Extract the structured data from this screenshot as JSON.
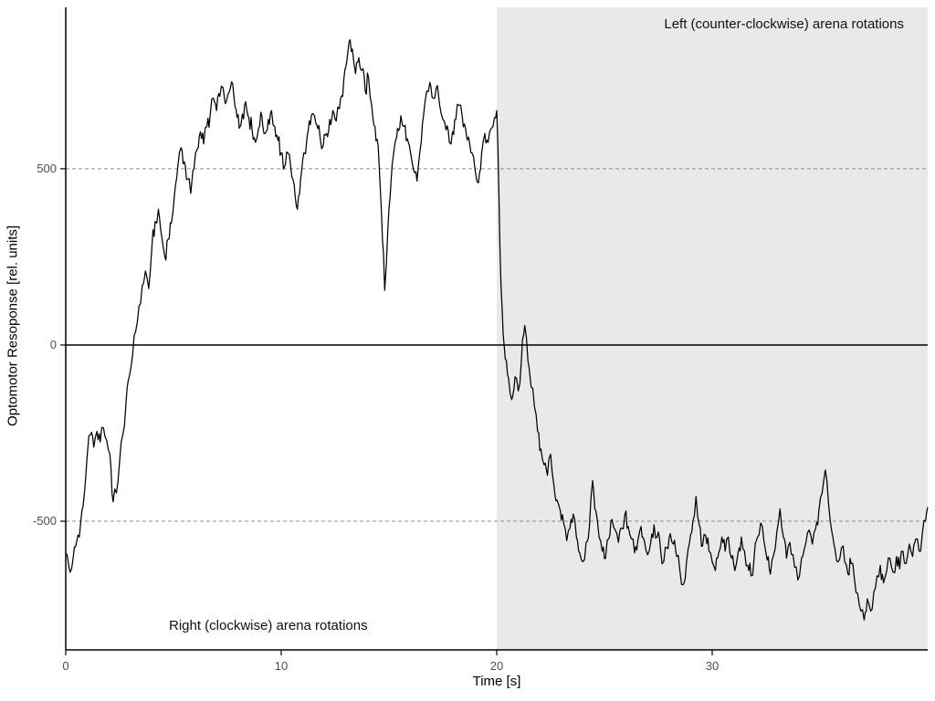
{
  "page": {
    "background": "#ffffff"
  },
  "chart_data": {
    "type": "line",
    "title": "",
    "xlabel": "Time [s]",
    "ylabel": "Optomotor Resoponse [rel. units]",
    "xlim": [
      0,
      40
    ],
    "ylim": [
      -865,
      958
    ],
    "x_ticks": [
      0,
      10,
      20,
      30
    ],
    "y_ticks": [
      -500,
      0,
      500
    ],
    "zero_line": 0,
    "dashed_gridlines": [
      500,
      -500
    ],
    "grid_dash_color": "#8c8c8c",
    "axis_color": "#000000",
    "tick_label_color": "#4d4d4d",
    "legend": "none",
    "shaded_region": {
      "x_start": 20,
      "x_end": 40,
      "color": "#e9e9e9"
    },
    "annotations": [
      {
        "id": "right-rotations",
        "text": "Right (clockwise) arena rotations",
        "region": "unshaded",
        "x": 5.5,
        "y": -770
      },
      {
        "id": "left-rotations",
        "text": "Left (counter-clockwise) arena rotations",
        "region": "shaded",
        "x": 30,
        "y": 900
      }
    ],
    "noise_amplitude": 26,
    "series": [
      {
        "name": "optomotor-response",
        "color": "#000000",
        "points": [
          [
            0,
            -590
          ],
          [
            0.2,
            -645
          ],
          [
            0.35,
            -600
          ],
          [
            0.5,
            -560
          ],
          [
            0.7,
            -500
          ],
          [
            0.85,
            -430
          ],
          [
            1,
            -310
          ],
          [
            1.15,
            -255
          ],
          [
            1.3,
            -290
          ],
          [
            1.45,
            -245
          ],
          [
            1.6,
            -275
          ],
          [
            1.75,
            -235
          ],
          [
            1.9,
            -270
          ],
          [
            2.05,
            -310
          ],
          [
            2.2,
            -445
          ],
          [
            2.35,
            -420
          ],
          [
            2.5,
            -330
          ],
          [
            2.65,
            -255
          ],
          [
            2.8,
            -160
          ],
          [
            2.95,
            -90
          ],
          [
            3.1,
            -30
          ],
          [
            3.25,
            40
          ],
          [
            3.4,
            110
          ],
          [
            3.55,
            170
          ],
          [
            3.7,
            210
          ],
          [
            3.85,
            160
          ],
          [
            4,
            280
          ],
          [
            4.15,
            350
          ],
          [
            4.3,
            385
          ],
          [
            4.45,
            310
          ],
          [
            4.6,
            250
          ],
          [
            4.75,
            300
          ],
          [
            4.9,
            345
          ],
          [
            5.05,
            430
          ],
          [
            5.2,
            505
          ],
          [
            5.35,
            560
          ],
          [
            5.5,
            520
          ],
          [
            5.65,
            470
          ],
          [
            5.8,
            430
          ],
          [
            5.95,
            500
          ],
          [
            6.1,
            555
          ],
          [
            6.25,
            605
          ],
          [
            6.4,
            570
          ],
          [
            6.55,
            620
          ],
          [
            6.7,
            650
          ],
          [
            6.85,
            700
          ],
          [
            7,
            665
          ],
          [
            7.15,
            705
          ],
          [
            7.3,
            730
          ],
          [
            7.45,
            690
          ],
          [
            7.6,
            720
          ],
          [
            7.75,
            740
          ],
          [
            7.9,
            670
          ],
          [
            8.05,
            615
          ],
          [
            8.2,
            655
          ],
          [
            8.35,
            690
          ],
          [
            8.5,
            645
          ],
          [
            8.65,
            610
          ],
          [
            8.8,
            575
          ],
          [
            8.95,
            615
          ],
          [
            9.1,
            650
          ],
          [
            9.25,
            600
          ],
          [
            9.4,
            640
          ],
          [
            9.55,
            665
          ],
          [
            9.7,
            620
          ],
          [
            9.85,
            580
          ],
          [
            10,
            545
          ],
          [
            10.15,
            505
          ],
          [
            10.3,
            545
          ],
          [
            10.45,
            500
          ],
          [
            10.6,
            455
          ],
          [
            10.75,
            385
          ],
          [
            10.9,
            470
          ],
          [
            11.05,
            545
          ],
          [
            11.2,
            590
          ],
          [
            11.35,
            625
          ],
          [
            11.5,
            655
          ],
          [
            11.65,
            625
          ],
          [
            11.8,
            590
          ],
          [
            11.95,
            565
          ],
          [
            12.1,
            600
          ],
          [
            12.25,
            640
          ],
          [
            12.4,
            665
          ],
          [
            12.55,
            635
          ],
          [
            12.7,
            670
          ],
          [
            12.85,
            705
          ],
          [
            13,
            790
          ],
          [
            13.15,
            860
          ],
          [
            13.3,
            840
          ],
          [
            13.45,
            770
          ],
          [
            13.6,
            815
          ],
          [
            13.75,
            780
          ],
          [
            13.9,
            720
          ],
          [
            14.05,
            760
          ],
          [
            14.2,
            680
          ],
          [
            14.35,
            620
          ],
          [
            14.5,
            565
          ],
          [
            14.65,
            380
          ],
          [
            14.8,
            155
          ],
          [
            14.95,
            330
          ],
          [
            15.1,
            470
          ],
          [
            15.25,
            560
          ],
          [
            15.4,
            615
          ],
          [
            15.55,
            650
          ],
          [
            15.7,
            620
          ],
          [
            15.85,
            585
          ],
          [
            16,
            545
          ],
          [
            16.15,
            495
          ],
          [
            16.3,
            465
          ],
          [
            16.45,
            555
          ],
          [
            16.6,
            650
          ],
          [
            16.75,
            720
          ],
          [
            16.9,
            745
          ],
          [
            17.05,
            700
          ],
          [
            17.2,
            730
          ],
          [
            17.35,
            680
          ],
          [
            17.5,
            640
          ],
          [
            17.65,
            610
          ],
          [
            17.8,
            575
          ],
          [
            17.95,
            605
          ],
          [
            18.1,
            640
          ],
          [
            18.25,
            680
          ],
          [
            18.4,
            650
          ],
          [
            18.55,
            615
          ],
          [
            18.7,
            590
          ],
          [
            18.85,
            545
          ],
          [
            19,
            495
          ],
          [
            19.15,
            460
          ],
          [
            19.3,
            545
          ],
          [
            19.45,
            600
          ],
          [
            19.6,
            575
          ],
          [
            19.75,
            615
          ],
          [
            19.9,
            645
          ],
          [
            20,
            665
          ],
          [
            20.1,
            430
          ],
          [
            20.2,
            170
          ],
          [
            20.3,
            30
          ],
          [
            20.4,
            -40
          ],
          [
            20.55,
            -95
          ],
          [
            20.7,
            -155
          ],
          [
            20.85,
            -90
          ],
          [
            21,
            -130
          ],
          [
            21.15,
            -40
          ],
          [
            21.3,
            55
          ],
          [
            21.45,
            -45
          ],
          [
            21.6,
            -120
          ],
          [
            21.75,
            -175
          ],
          [
            21.9,
            -245
          ],
          [
            22.05,
            -295
          ],
          [
            22.2,
            -340
          ],
          [
            22.35,
            -370
          ],
          [
            22.5,
            -310
          ],
          [
            22.65,
            -395
          ],
          [
            22.8,
            -440
          ],
          [
            22.95,
            -470
          ],
          [
            23.1,
            -505
          ],
          [
            23.25,
            -555
          ],
          [
            23.4,
            -520
          ],
          [
            23.55,
            -480
          ],
          [
            23.7,
            -545
          ],
          [
            23.85,
            -590
          ],
          [
            24,
            -615
          ],
          [
            24.15,
            -560
          ],
          [
            24.3,
            -515
          ],
          [
            24.45,
            -385
          ],
          [
            24.6,
            -470
          ],
          [
            24.75,
            -545
          ],
          [
            24.9,
            -585
          ],
          [
            25.05,
            -605
          ],
          [
            25.2,
            -550
          ],
          [
            25.35,
            -495
          ],
          [
            25.5,
            -525
          ],
          [
            25.65,
            -560
          ],
          [
            25.8,
            -520
          ],
          [
            25.95,
            -480
          ],
          [
            26.1,
            -515
          ],
          [
            26.25,
            -550
          ],
          [
            26.4,
            -590
          ],
          [
            26.55,
            -555
          ],
          [
            26.7,
            -515
          ],
          [
            26.85,
            -555
          ],
          [
            27,
            -595
          ],
          [
            27.15,
            -560
          ],
          [
            27.3,
            -510
          ],
          [
            27.45,
            -545
          ],
          [
            27.6,
            -580
          ],
          [
            27.75,
            -615
          ],
          [
            27.9,
            -575
          ],
          [
            28.05,
            -535
          ],
          [
            28.2,
            -565
          ],
          [
            28.35,
            -600
          ],
          [
            28.5,
            -640
          ],
          [
            28.65,
            -680
          ],
          [
            28.8,
            -620
          ],
          [
            28.95,
            -560
          ],
          [
            29.1,
            -500
          ],
          [
            29.25,
            -430
          ],
          [
            29.4,
            -510
          ],
          [
            29.55,
            -570
          ],
          [
            29.7,
            -540
          ],
          [
            29.85,
            -585
          ],
          [
            30,
            -615
          ],
          [
            30.15,
            -640
          ],
          [
            30.3,
            -590
          ],
          [
            30.45,
            -545
          ],
          [
            30.6,
            -585
          ],
          [
            30.75,
            -545
          ],
          [
            30.9,
            -605
          ],
          [
            31.05,
            -640
          ],
          [
            31.2,
            -590
          ],
          [
            31.35,
            -545
          ],
          [
            31.5,
            -585
          ],
          [
            31.65,
            -625
          ],
          [
            31.8,
            -655
          ],
          [
            31.95,
            -600
          ],
          [
            32.1,
            -545
          ],
          [
            32.25,
            -505
          ],
          [
            32.4,
            -555
          ],
          [
            32.55,
            -610
          ],
          [
            32.7,
            -650
          ],
          [
            32.85,
            -595
          ],
          [
            33,
            -530
          ],
          [
            33.15,
            -465
          ],
          [
            33.3,
            -545
          ],
          [
            33.45,
            -605
          ],
          [
            33.6,
            -560
          ],
          [
            33.75,
            -595
          ],
          [
            33.9,
            -630
          ],
          [
            34.05,
            -655
          ],
          [
            34.2,
            -600
          ],
          [
            34.35,
            -560
          ],
          [
            34.5,
            -525
          ],
          [
            34.65,
            -565
          ],
          [
            34.8,
            -520
          ],
          [
            34.95,
            -470
          ],
          [
            35.1,
            -420
          ],
          [
            35.25,
            -355
          ],
          [
            35.4,
            -450
          ],
          [
            35.55,
            -530
          ],
          [
            35.7,
            -580
          ],
          [
            35.85,
            -615
          ],
          [
            36,
            -575
          ],
          [
            36.15,
            -615
          ],
          [
            36.3,
            -650
          ],
          [
            36.45,
            -620
          ],
          [
            36.6,
            -665
          ],
          [
            36.75,
            -705
          ],
          [
            36.9,
            -755
          ],
          [
            37.05,
            -780
          ],
          [
            37.2,
            -720
          ],
          [
            37.35,
            -755
          ],
          [
            37.5,
            -700
          ],
          [
            37.65,
            -655
          ],
          [
            37.8,
            -625
          ],
          [
            37.95,
            -675
          ],
          [
            38.1,
            -640
          ],
          [
            38.25,
            -605
          ],
          [
            38.4,
            -645
          ],
          [
            38.55,
            -600
          ],
          [
            38.7,
            -635
          ],
          [
            38.85,
            -585
          ],
          [
            39,
            -620
          ],
          [
            39.15,
            -565
          ],
          [
            39.3,
            -600
          ],
          [
            39.45,
            -550
          ],
          [
            39.6,
            -585
          ],
          [
            39.75,
            -535
          ],
          [
            39.9,
            -500
          ],
          [
            40,
            -460
          ]
        ]
      }
    ]
  }
}
